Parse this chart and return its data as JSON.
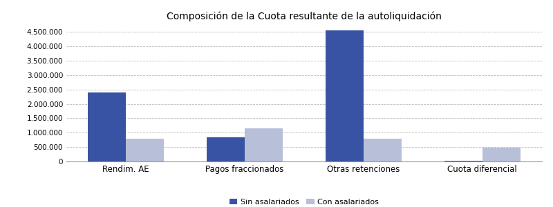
{
  "title": "Composición de la Cuota resultante de la autoliquidación",
  "categories": [
    "Rendim. AE",
    "Pagos fraccionados",
    "Otras retenciones",
    "Cuota diferencial"
  ],
  "sin_asalariados": [
    2400000,
    850000,
    4550000,
    30000
  ],
  "con_asalariados": [
    800000,
    1150000,
    780000,
    480000
  ],
  "color_sin": "#3953a4",
  "color_con": "#b8bfd8",
  "ylim": [
    0,
    4750000
  ],
  "yticks": [
    0,
    500000,
    1000000,
    1500000,
    2000000,
    2500000,
    3000000,
    3500000,
    4000000,
    4500000
  ],
  "legend_labels": [
    "Sin asalariados",
    "Con asalariados"
  ],
  "background_color": "#ffffff",
  "grid_color": "#bbbbbb",
  "bar_width": 0.32,
  "title_fontsize": 10,
  "tick_fontsize": 7.5,
  "xlabel_fontsize": 8.5
}
